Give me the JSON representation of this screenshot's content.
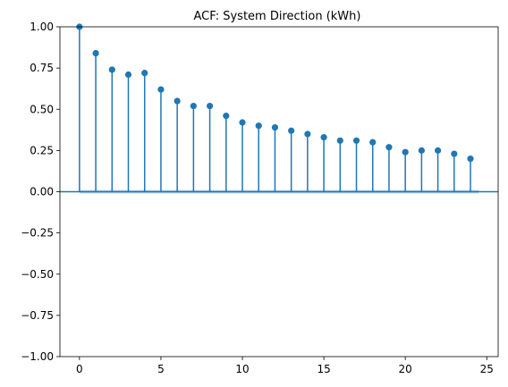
{
  "chart_data": {
    "type": "stem",
    "title": "ACF: System Direction (kWh)",
    "xlabel": "",
    "ylabel": "",
    "xlim": [
      -1.2,
      25.7
    ],
    "ylim": [
      -1.0,
      1.0
    ],
    "xticks": [
      0,
      5,
      10,
      15,
      20,
      25
    ],
    "xtick_labels": [
      "0",
      "5",
      "10",
      "15",
      "20",
      "25"
    ],
    "yticks": [
      -1.0,
      -0.75,
      -0.5,
      -0.25,
      0.0,
      0.25,
      0.5,
      0.75,
      1.0
    ],
    "ytick_labels": [
      "−1.00",
      "−0.75",
      "−0.50",
      "−0.25",
      "0.00",
      "0.25",
      "0.50",
      "0.75",
      "1.00"
    ],
    "grid": false,
    "colors": {
      "stem": "#1f77b4",
      "confidence_band": "#aec7e8",
      "axis": "#000000"
    },
    "series": [
      {
        "x": [
          0,
          1,
          2,
          3,
          4,
          5,
          6,
          7,
          8,
          9,
          10,
          11,
          12,
          13,
          14,
          15,
          16,
          17,
          18,
          19,
          20,
          21,
          22,
          23,
          24
        ],
        "values": [
          1.0,
          0.84,
          0.74,
          0.71,
          0.72,
          0.62,
          0.55,
          0.52,
          0.52,
          0.46,
          0.42,
          0.4,
          0.39,
          0.37,
          0.35,
          0.33,
          0.31,
          0.31,
          0.3,
          0.27,
          0.24,
          0.25,
          0.25,
          0.23,
          0.2
        ]
      }
    ],
    "confidence_band": {
      "x": [
        0,
        24.5
      ],
      "lower": -0.01,
      "upper": 0.01
    }
  }
}
